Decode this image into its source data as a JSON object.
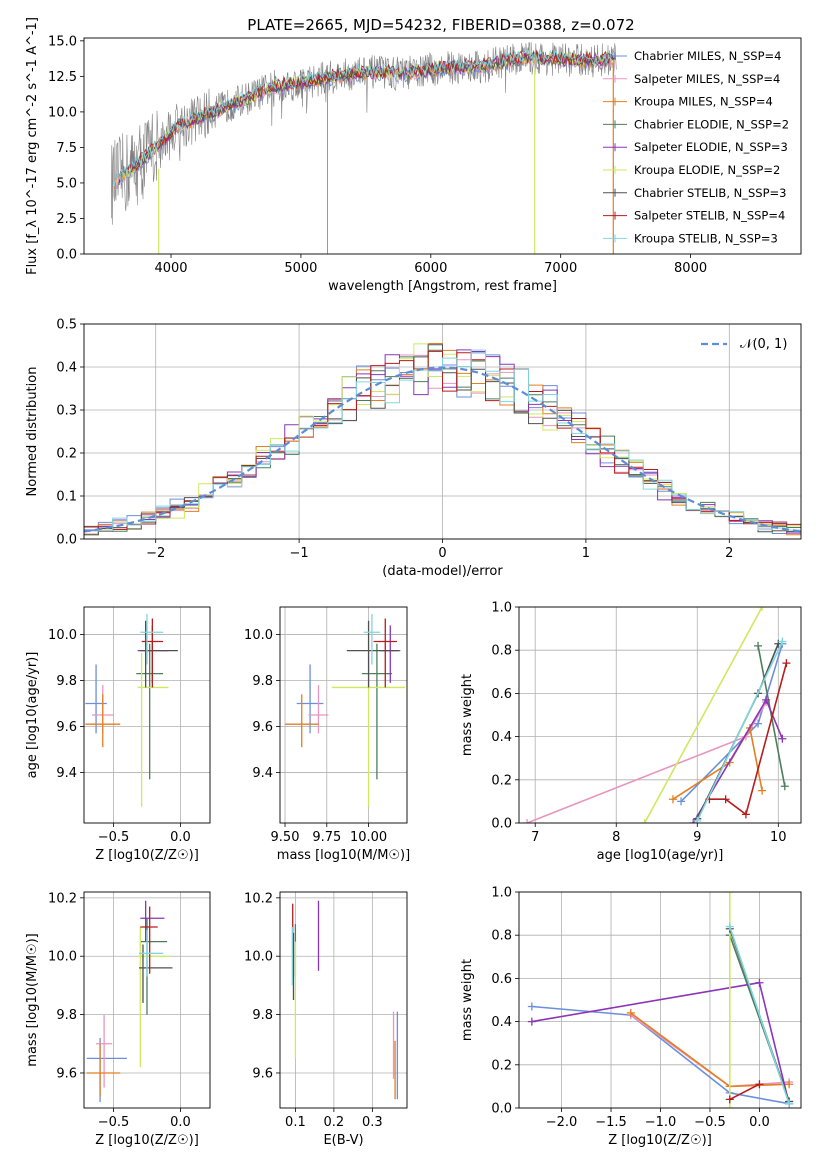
{
  "figure_title": "PLATE=2665, MJD=54232, FIBERID=0388, z=0.072",
  "colors": [
    "#6b8fdc",
    "#e895c0",
    "#e37f22",
    "#4e7d5b",
    "#8b35b8",
    "#cfe860",
    "#505050",
    "#b71c1c",
    "#80d6e0"
  ],
  "chart_data": [
    {
      "type": "line",
      "id": "spectrum",
      "title": "PLATE=2665, MJD=54232, FIBERID=0388, z=0.072",
      "xlabel": "wavelength [Angstrom, rest frame]",
      "ylabel": "Flux [f_λ 10^-17 erg cm^-2 s^-1 A^-1]",
      "xlim": [
        3330,
        8850
      ],
      "ylim": [
        0,
        15.2
      ],
      "xticks": [
        "4000",
        "5000",
        "6000",
        "7000",
        "8000"
      ],
      "yticks": [
        "0.0",
        "2.5",
        "5.0",
        "7.5",
        "10.0",
        "12.5",
        "15.0"
      ],
      "legend_position": "right",
      "continuum_x": [
        3550,
        3700,
        3850,
        3950,
        4050,
        4200,
        4400,
        4600,
        4800,
        5000,
        5200,
        5500,
        5800,
        6100,
        6400,
        6700,
        7000,
        7200,
        7400
      ],
      "continuum_y": [
        5.0,
        6.0,
        7.2,
        8.0,
        9.0,
        9.5,
        10.3,
        11.0,
        11.8,
        12.0,
        12.4,
        12.8,
        12.7,
        13.1,
        13.2,
        13.8,
        13.7,
        13.6,
        13.7
      ],
      "series": [
        {
          "name": "Chabrier MILES, N_SSP=4"
        },
        {
          "name": "Salpeter MILES, N_SSP=4"
        },
        {
          "name": "Kroupa MILES, N_SSP=4"
        },
        {
          "name": "Chabrier ELODIE, N_SSP=2"
        },
        {
          "name": "Salpeter ELODIE, N_SSP=3"
        },
        {
          "name": "Kroupa ELODIE, N_SSP=2"
        },
        {
          "name": "Chabrier STELIB, N_SSP=3"
        },
        {
          "name": "Salpeter STELIB, N_SSP=4"
        },
        {
          "name": "Kroupa STELIB, N_SSP=3"
        }
      ]
    },
    {
      "type": "histogram",
      "id": "residuals",
      "xlabel": "(data-model)/error",
      "ylabel": "Normed distribution",
      "xlim": [
        -2.5,
        2.5
      ],
      "ylim": [
        0,
        0.5
      ],
      "xticks": [
        "−2",
        "−1",
        "0",
        "1",
        "2"
      ],
      "yticks": [
        "0.0",
        "0.1",
        "0.2",
        "0.3",
        "0.4",
        "0.5"
      ],
      "bin_width": 0.1,
      "legend": [
        {
          "label": "𝒩(0, 1)",
          "style": "dashed",
          "color": "#5b8ed6"
        }
      ],
      "legend_position": "top-right",
      "grid": true
    },
    {
      "type": "scatter",
      "id": "age-vs-Z",
      "xlabel": "Z [log10(Z/Z☉)]",
      "ylabel": "age [log10(age/yr)]",
      "xlim": [
        -0.72,
        0.22
      ],
      "ylim": [
        9.18,
        10.12
      ],
      "xticks": [
        "−0.5",
        "0.0"
      ],
      "yticks": [
        "9.4",
        "9.6",
        "9.8",
        "10.0"
      ],
      "grid": true,
      "points": [
        {
          "x": -0.63,
          "y": 9.7,
          "xerr": [
            0.08,
            0.08
          ],
          "yerr": [
            0.13,
            0.17
          ]
        },
        {
          "x": -0.58,
          "y": 9.65,
          "xerr": [
            0.08,
            0.08
          ],
          "yerr": [
            0.08,
            0.13
          ]
        },
        {
          "x": -0.58,
          "y": 9.61,
          "xerr": [
            0.13,
            0.13
          ],
          "yerr": [
            0.1,
            0.13
          ]
        },
        {
          "x": -0.23,
          "y": 9.83,
          "xerr": [
            0.1,
            0.1
          ],
          "yerr": [
            0.46,
            0.13
          ]
        },
        {
          "x": -0.21,
          "y": 9.93,
          "xerr": [
            0.11,
            0.12
          ],
          "yerr": [
            0.14,
            0.11
          ]
        },
        {
          "x": -0.29,
          "y": 9.77,
          "xerr": [
            0.03,
            0.2
          ],
          "yerr": [
            0.52,
            0.15
          ]
        },
        {
          "x": -0.26,
          "y": 9.93,
          "xerr": [
            0.04,
            0.24
          ],
          "yerr": [
            0.16,
            0.13
          ]
        },
        {
          "x": -0.21,
          "y": 9.97,
          "xerr": [
            0.08,
            0.08
          ],
          "yerr": [
            0.2,
            0.1
          ]
        },
        {
          "x": -0.25,
          "y": 10.01,
          "xerr": [
            0.05,
            0.12
          ],
          "yerr": [
            0.14,
            0.08
          ]
        }
      ]
    },
    {
      "type": "scatter",
      "id": "age-vs-mass",
      "xlabel": "mass [log10(M/M☉)]",
      "ylabel": "",
      "xlim": [
        9.47,
        10.23
      ],
      "ylim": [
        9.18,
        10.12
      ],
      "xticks": [
        "9.50",
        "9.75",
        "10.00"
      ],
      "yticks": [
        "9.4",
        "9.6",
        "9.8",
        "10.0"
      ],
      "grid": true,
      "points": [
        {
          "x": 9.65,
          "y": 9.7,
          "xerr": [
            0.08,
            0.08
          ],
          "yerr": [
            0.13,
            0.17
          ]
        },
        {
          "x": 9.7,
          "y": 9.65,
          "xerr": [
            0.06,
            0.06
          ],
          "yerr": [
            0.08,
            0.13
          ]
        },
        {
          "x": 9.6,
          "y": 9.61,
          "xerr": [
            0.1,
            0.1
          ],
          "yerr": [
            0.1,
            0.13
          ]
        },
        {
          "x": 10.05,
          "y": 9.83,
          "xerr": [
            0.09,
            0.09
          ],
          "yerr": [
            0.46,
            0.13
          ]
        },
        {
          "x": 10.13,
          "y": 9.93,
          "xerr": [
            0.06,
            0.06
          ],
          "yerr": [
            0.14,
            0.11
          ]
        },
        {
          "x": 10.0,
          "y": 9.77,
          "xerr": [
            0.22,
            0.22
          ],
          "yerr": [
            0.52,
            0.15
          ]
        },
        {
          "x": 10.0,
          "y": 9.93,
          "xerr": [
            0.13,
            0.18
          ],
          "yerr": [
            0.16,
            0.13
          ]
        },
        {
          "x": 10.1,
          "y": 9.97,
          "xerr": [
            0.07,
            0.07
          ],
          "yerr": [
            0.2,
            0.1
          ]
        },
        {
          "x": 10.02,
          "y": 10.01,
          "xerr": [
            0.05,
            0.05
          ],
          "yerr": [
            0.14,
            0.08
          ]
        }
      ]
    },
    {
      "type": "line",
      "id": "massweight-vs-age",
      "xlabel": "age [log10(age/yr)]",
      "ylabel": "mass weight",
      "xlim": [
        6.8,
        10.28
      ],
      "ylim": [
        0,
        1.0
      ],
      "xticks": [
        "7",
        "8",
        "9",
        "10"
      ],
      "yticks": [
        "0.0",
        "0.2",
        "0.4",
        "0.6",
        "0.8",
        "1.0"
      ],
      "grid": true,
      "series": [
        {
          "x": [
            8.8,
            9.75,
            10.05
          ],
          "y": [
            0.1,
            0.46,
            0.83
          ]
        },
        {
          "x": [
            6.9,
            9.6,
            9.85
          ],
          "y": [
            0.0,
            0.4,
            0.56
          ]
        },
        {
          "x": [
            8.7,
            9.4,
            9.65,
            9.8
          ],
          "y": [
            0.11,
            0.28,
            0.44,
            0.15
          ]
        },
        {
          "x": [
            9.75,
            10.08
          ],
          "y": [
            0.82,
            0.17
          ]
        },
        {
          "x": [
            8.95,
            9.85,
            10.05
          ],
          "y": [
            0.0,
            0.57,
            0.39
          ]
        },
        {
          "x": [
            8.35,
            9.8
          ],
          "y": [
            0.0,
            1.0
          ]
        },
        {
          "x": [
            9.0,
            9.75,
            10.0
          ],
          "y": [
            0.02,
            0.6,
            0.83
          ]
        },
        {
          "x": [
            9.15,
            9.35,
            9.6,
            10.1
          ],
          "y": [
            0.11,
            0.11,
            0.04,
            0.74
          ]
        },
        {
          "x": [
            9.0,
            10.05
          ],
          "y": [
            0.01,
            0.84
          ]
        }
      ]
    },
    {
      "type": "scatter",
      "id": "mass-vs-Z",
      "xlabel": "Z [log10(Z/Z☉)]",
      "ylabel": "mass [log10(M/M☉)]",
      "xlim": [
        -0.72,
        0.22
      ],
      "ylim": [
        9.48,
        10.22
      ],
      "xticks": [
        "−0.5",
        "0.0"
      ],
      "yticks": [
        "9.6",
        "9.8",
        "10.0",
        "10.2"
      ],
      "grid": true,
      "points": [
        {
          "x": -0.6,
          "y": 9.65,
          "xerr": [
            0.1,
            0.2
          ],
          "yerr": [
            0.15,
            0.07
          ]
        },
        {
          "x": -0.57,
          "y": 9.7,
          "xerr": [
            0.06,
            0.06
          ],
          "yerr": [
            0.15,
            0.1
          ]
        },
        {
          "x": -0.6,
          "y": 9.6,
          "xerr": [
            0.1,
            0.15
          ],
          "yerr": [
            0.08,
            0.1
          ]
        },
        {
          "x": -0.25,
          "y": 10.05,
          "xerr": [
            0.05,
            0.15
          ],
          "yerr": [
            0.25,
            0.08
          ]
        },
        {
          "x": -0.26,
          "y": 10.13,
          "xerr": [
            0.04,
            0.14
          ],
          "yerr": [
            0.08,
            0.06
          ]
        },
        {
          "x": -0.3,
          "y": 10.0,
          "xerr": [
            0.02,
            0.22
          ],
          "yerr": [
            0.38,
            0.1
          ]
        },
        {
          "x": -0.28,
          "y": 9.96,
          "xerr": [
            0.03,
            0.22
          ],
          "yerr": [
            0.12,
            0.08
          ]
        },
        {
          "x": -0.23,
          "y": 10.1,
          "xerr": [
            0.07,
            0.06
          ],
          "yerr": [
            0.16,
            0.07
          ]
        },
        {
          "x": -0.25,
          "y": 10.01,
          "xerr": [
            0.06,
            0.12
          ],
          "yerr": [
            0.08,
            0.08
          ]
        }
      ]
    },
    {
      "type": "scatter",
      "id": "mass-vs-EBV",
      "xlabel": "E(B-V)",
      "ylabel": "",
      "xlim": [
        0.06,
        0.39
      ],
      "ylim": [
        9.48,
        10.22
      ],
      "xticks": [
        "0.1",
        "0.2",
        "0.3"
      ],
      "yticks": [
        "9.6",
        "9.8",
        "10.0",
        "10.2"
      ],
      "grid": true,
      "points": [
        {
          "x": 0.365,
          "y": 9.63
        },
        {
          "x": 0.355,
          "y": 9.66
        },
        {
          "x": 0.359,
          "y": 9.61
        },
        {
          "x": 0.1,
          "y": 10.03
        },
        {
          "x": 0.16,
          "y": 10.07
        },
        {
          "x": 0.1,
          "y": 9.95
        },
        {
          "x": 0.095,
          "y": 10.0
        },
        {
          "x": 0.093,
          "y": 10.04
        },
        {
          "x": 0.092,
          "y": 10.0
        }
      ]
    },
    {
      "type": "line",
      "id": "massweight-vs-Z",
      "xlabel": "Z [log10(Z/Z☉)]",
      "ylabel": "mass weight",
      "xlim": [
        -2.43,
        0.42
      ],
      "ylim": [
        0,
        1.0
      ],
      "xticks": [
        "−2.0",
        "−1.5",
        "−1.0",
        "−0.5",
        "0.0"
      ],
      "yticks": [
        "0.0",
        "0.2",
        "0.4",
        "0.6",
        "0.8",
        "1.0"
      ],
      "grid": true,
      "series": [
        {
          "x": [
            -2.3,
            -1.3,
            -0.3,
            0.3
          ],
          "y": [
            0.47,
            0.43,
            0.07,
            0.02
          ]
        },
        {
          "x": [
            -1.3,
            -0.3,
            0.3
          ],
          "y": [
            0.43,
            0.1,
            0.12
          ]
        },
        {
          "x": [
            -1.3,
            -0.3,
            0.3
          ],
          "y": [
            0.44,
            0.1,
            0.11
          ]
        },
        {
          "x": [
            -0.3,
            0.3
          ],
          "y": [
            0.8,
            0.03
          ]
        },
        {
          "x": [
            -2.3,
            0.0,
            0.3
          ],
          "y": [
            0.4,
            0.58,
            0.02
          ]
        },
        {
          "x": [
            -0.3,
            -0.3
          ],
          "y": [
            0.0,
            1.0
          ]
        },
        {
          "x": [
            -0.3,
            0.3
          ],
          "y": [
            0.83,
            0.03
          ]
        },
        {
          "x": [
            -0.3,
            0.0
          ],
          "y": [
            0.04,
            0.11
          ]
        },
        {
          "x": [
            -0.3,
            0.3
          ],
          "y": [
            0.84,
            0.02
          ]
        }
      ]
    }
  ]
}
